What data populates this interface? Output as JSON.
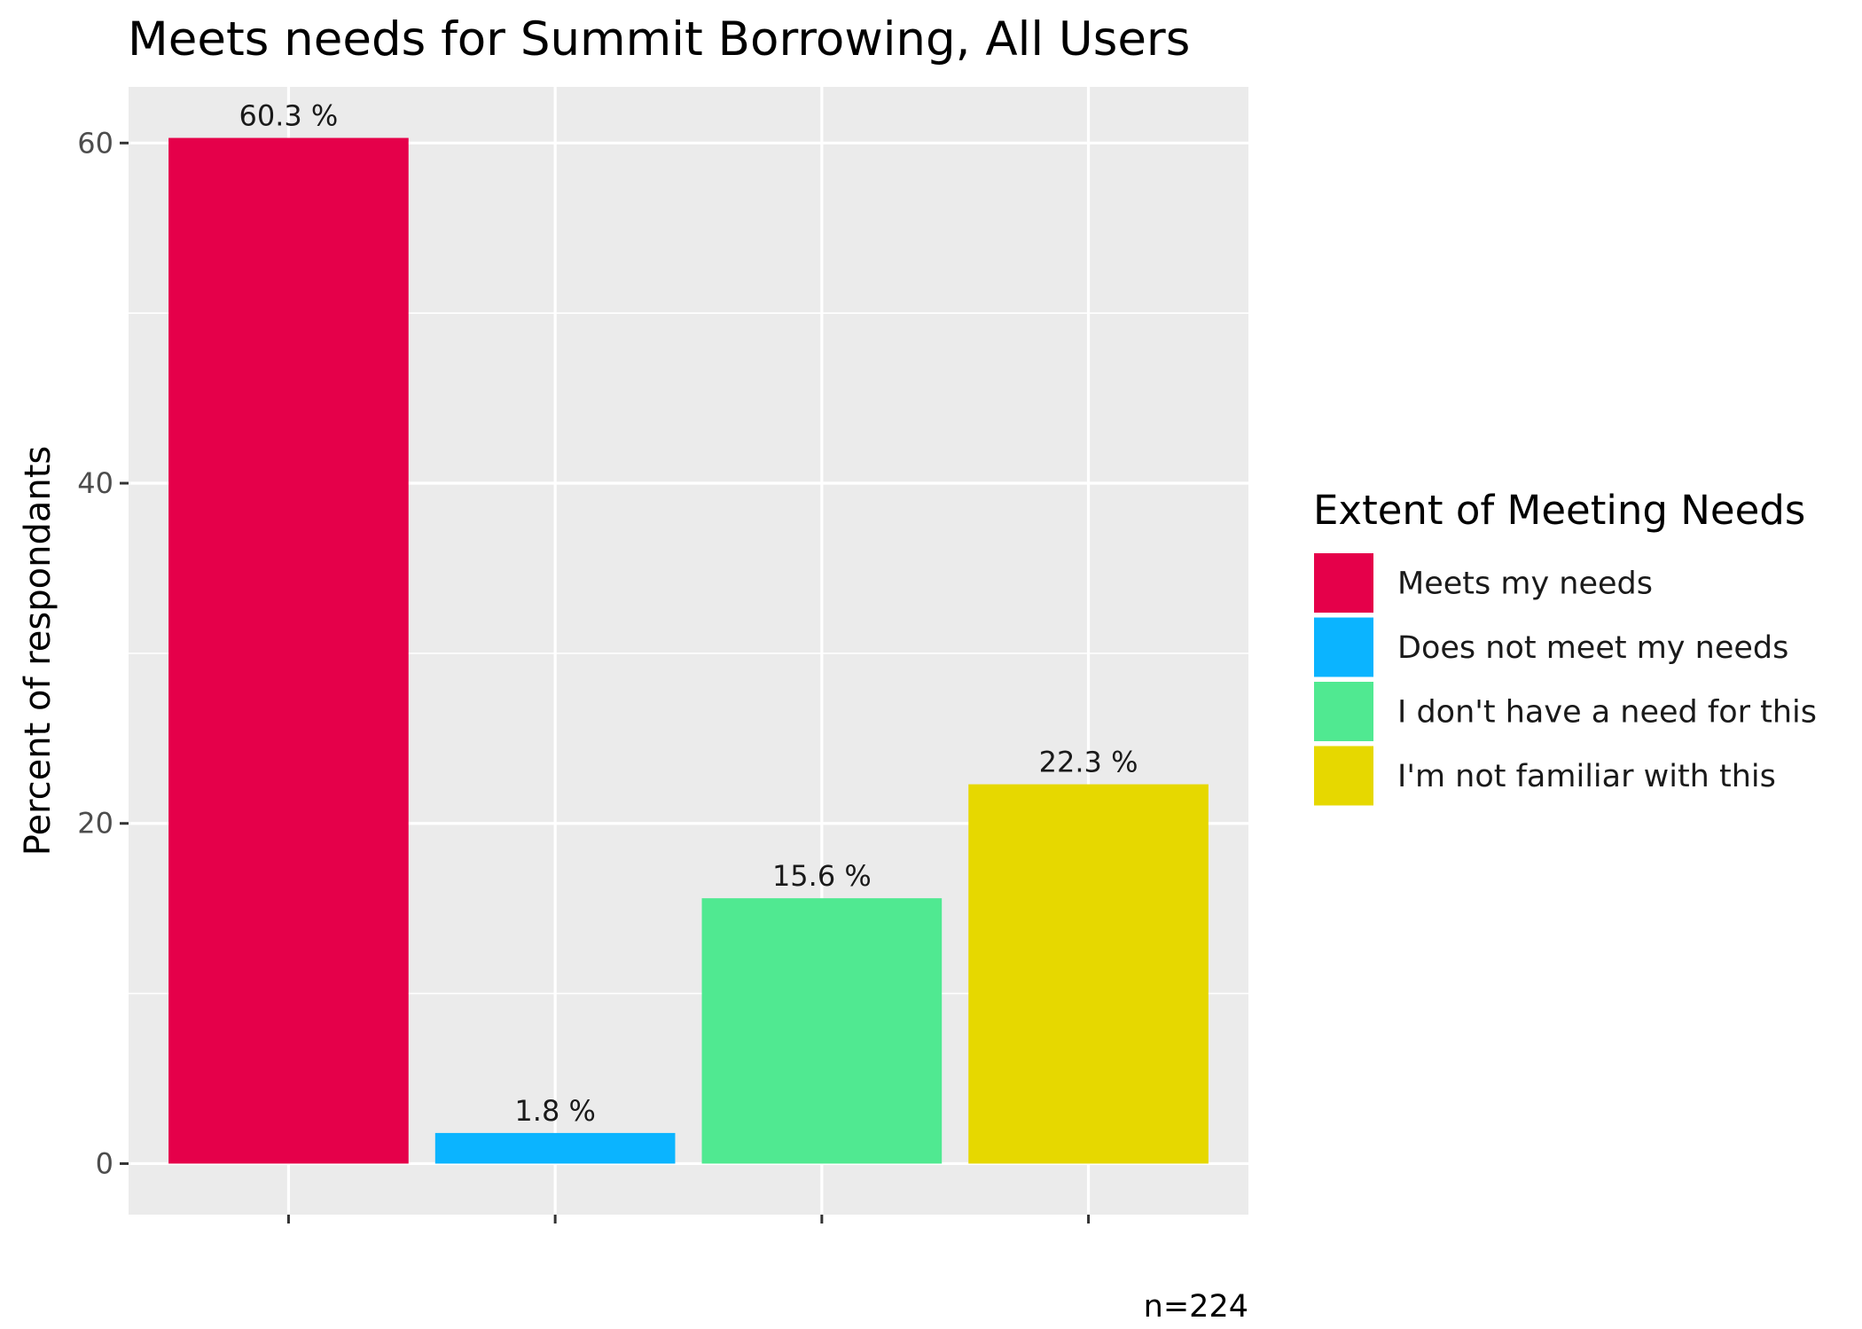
{
  "chart_data": {
    "type": "bar",
    "title": "Meets needs for Summit Borrowing, All Users",
    "xlabel": "",
    "ylabel": "Percent of respondants",
    "categories": [
      "Meets my needs",
      "Does not meet my needs",
      "I don't have a need for this",
      "I'm not familiar with this"
    ],
    "values": [
      60.3,
      1.8,
      15.6,
      22.3
    ],
    "value_labels": [
      "60.3 %",
      "1.8 %",
      "15.6 %",
      "22.3 %"
    ],
    "colors": [
      "#E5004A",
      "#0BB4FF",
      "#50E991",
      "#E6D800"
    ],
    "ylim": [
      -3,
      63.3
    ],
    "yticks": [
      0,
      20,
      40,
      60
    ],
    "ytick_labels": [
      "0",
      "20",
      "40",
      "60"
    ],
    "grid": true,
    "panel_background": "#EBEBEB",
    "legend": {
      "title": "Extent of Meeting Needs",
      "placement": "right",
      "entries": [
        "Meets my needs",
        "Does not meet my needs",
        "I don't have a need for this",
        "I'm not familiar with this"
      ]
    },
    "caption": "n=224"
  }
}
